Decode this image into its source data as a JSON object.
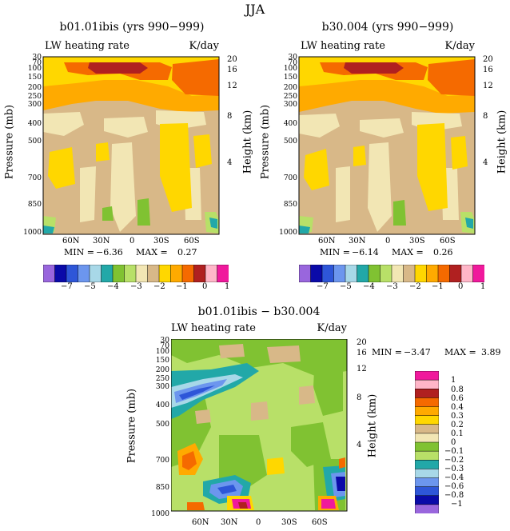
{
  "page": {
    "title": "JJA"
  },
  "chart_data": [
    {
      "type": "heatmap",
      "title": "b01.01ibis (yrs 990−999)",
      "left_subtitle": "LW heating rate",
      "right_subtitle": "K/day",
      "ylabel": "Pressure (mb)",
      "ylabel_right": "Height (km)",
      "y_ticks": [
        "30",
        "70",
        "100",
        "150",
        "200",
        "250",
        "300",
        "400",
        "500",
        "700",
        "850",
        "1000"
      ],
      "y_right_ticks": [
        "20",
        "16",
        "12",
        "8",
        "4"
      ],
      "x_ticks": [
        "60N",
        "30N",
        "0",
        "30S",
        "60S"
      ],
      "min_label": "MIN =",
      "min": "−6.36",
      "max_label": "MAX =",
      "max": "0.27",
      "colorbar_labels": [
        "−7",
        "−5",
        "−4",
        "−3",
        "−2",
        "−1",
        "0",
        "1"
      ]
    },
    {
      "type": "heatmap",
      "title": "b30.004 (yrs 990−999)",
      "left_subtitle": "LW heating rate",
      "right_subtitle": "K/day",
      "ylabel": "Pressure (mb)",
      "ylabel_right": "Height (km)",
      "y_ticks": [
        "30",
        "70",
        "100",
        "150",
        "200",
        "250",
        "300",
        "400",
        "500",
        "700",
        "850",
        "1000"
      ],
      "y_right_ticks": [
        "20",
        "16",
        "12",
        "8",
        "4"
      ],
      "x_ticks": [
        "60N",
        "30N",
        "0",
        "30S",
        "60S"
      ],
      "min_label": "MIN =",
      "min": "−6.14",
      "max_label": "MAX =",
      "max": "0.26",
      "colorbar_labels": [
        "−7",
        "−5",
        "−4",
        "−3",
        "−2",
        "−1",
        "0",
        "1"
      ]
    },
    {
      "type": "heatmap",
      "title": "b01.01ibis − b30.004",
      "left_subtitle": "LW heating rate",
      "right_subtitle": "K/day",
      "ylabel": "Pressure (mb)",
      "ylabel_right": "Height (km)",
      "y_ticks": [
        "30",
        "70",
        "100",
        "150",
        "200",
        "250",
        "300",
        "400",
        "500",
        "700",
        "850",
        "1000"
      ],
      "y_right_ticks": [
        "20",
        "16",
        "12",
        "8",
        "4"
      ],
      "x_ticks": [
        "60N",
        "30N",
        "0",
        "30S",
        "60S"
      ],
      "min_label": "MIN =",
      "min": "−3.47",
      "max_label": "MAX =",
      "max": "3.89",
      "colorbar_labels": [
        "1",
        "0.8",
        "0.6",
        "0.4",
        "0.3",
        "0.2",
        "0.1",
        "0",
        "−0.1",
        "−0.2",
        "−0.3",
        "−0.4",
        "−0.6",
        "−0.8",
        "−1"
      ]
    }
  ],
  "colors": {
    "abs_scale": [
      "#9966dd",
      "#0a0aa8",
      "#2e56d8",
      "#6c96ee",
      "#a8d8e8",
      "#22a8a8",
      "#80c232",
      "#b8e068",
      "#f2e6b4",
      "#d8b888",
      "#ffd700",
      "#ffaa00",
      "#f56a00",
      "#b02020",
      "#ffb6c8",
      "#f0199c"
    ],
    "diff_scale": [
      "#f0199c",
      "#ffb6c8",
      "#b02020",
      "#f56a00",
      "#ffaa00",
      "#ffd700",
      "#d8b888",
      "#f2e6b4",
      "#80c232",
      "#b8e068",
      "#22a8a8",
      "#a8d8e8",
      "#6c96ee",
      "#2e56d8",
      "#0a0aa8",
      "#9966dd"
    ]
  }
}
